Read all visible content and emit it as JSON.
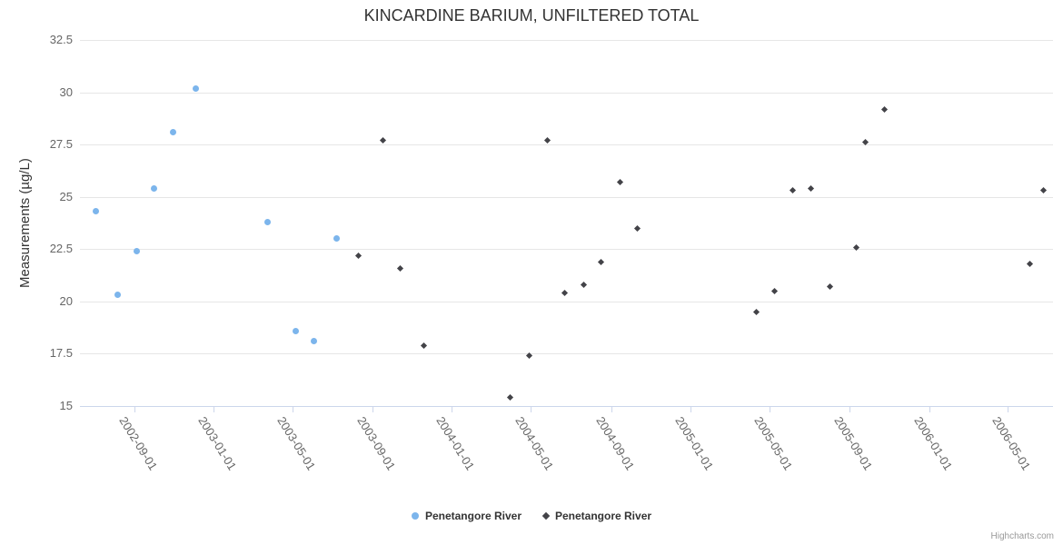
{
  "chart_data": {
    "type": "scatter",
    "title": "KINCARDINE BARIUM, UNFILTERED TOTAL",
    "xlabel": "",
    "ylabel": "Measurements (µg/L)",
    "ylim": [
      15,
      32.5
    ],
    "y_ticks": [
      15,
      17.5,
      20,
      22.5,
      25,
      27.5,
      30,
      32.5
    ],
    "xlim": [
      "2002-06-10",
      "2006-07-10"
    ],
    "x_ticks": [
      "2002-09-01",
      "2003-01-01",
      "2003-05-01",
      "2003-09-01",
      "2004-01-01",
      "2004-05-01",
      "2004-09-01",
      "2005-01-01",
      "2005-05-01",
      "2005-09-01",
      "2006-01-01",
      "2006-05-01"
    ],
    "grid": true,
    "legend_position": "bottom-center",
    "credits": "Highcharts.com",
    "colors": {
      "grid": "#e6e6e6",
      "axis_line": "#ccd6eb",
      "tick_label": "#666666",
      "text": "#333333",
      "series_blue": "#7cb5ec",
      "series_dark": "#434348"
    },
    "series": [
      {
        "name": "Penetangore River",
        "color": "#7cb5ec",
        "marker": "circle",
        "points": [
          [
            "2002-07-04",
            24.3
          ],
          [
            "2002-08-07",
            20.3
          ],
          [
            "2002-09-05",
            22.4
          ],
          [
            "2002-10-02",
            25.4
          ],
          [
            "2002-10-30",
            28.1
          ],
          [
            "2002-12-04",
            30.2
          ],
          [
            "2003-03-25",
            23.8
          ],
          [
            "2003-05-06",
            18.6
          ],
          [
            "2003-06-03",
            18.1
          ],
          [
            "2003-07-08",
            23.0
          ]
        ]
      },
      {
        "name": "Penetangore River",
        "color": "#434348",
        "marker": "diamond",
        "points": [
          [
            "2003-08-11",
            22.2
          ],
          [
            "2003-09-17",
            27.7
          ],
          [
            "2003-10-14",
            21.6
          ],
          [
            "2003-11-19",
            17.9
          ],
          [
            "2004-03-30",
            15.4
          ],
          [
            "2004-04-28",
            17.4
          ],
          [
            "2004-05-26",
            27.7
          ],
          [
            "2004-06-22",
            20.4
          ],
          [
            "2004-07-21",
            20.8
          ],
          [
            "2004-08-17",
            21.9
          ],
          [
            "2004-09-14",
            25.7
          ],
          [
            "2004-10-11",
            23.5
          ],
          [
            "2005-04-11",
            19.5
          ],
          [
            "2005-05-09",
            20.5
          ],
          [
            "2005-06-06",
            25.3
          ],
          [
            "2005-07-04",
            25.4
          ],
          [
            "2005-08-02",
            20.7
          ],
          [
            "2005-09-11",
            22.6
          ],
          [
            "2005-09-25",
            27.6
          ],
          [
            "2005-10-24",
            29.2
          ],
          [
            "2006-06-05",
            21.8
          ],
          [
            "2006-06-26",
            25.3
          ]
        ]
      }
    ]
  }
}
